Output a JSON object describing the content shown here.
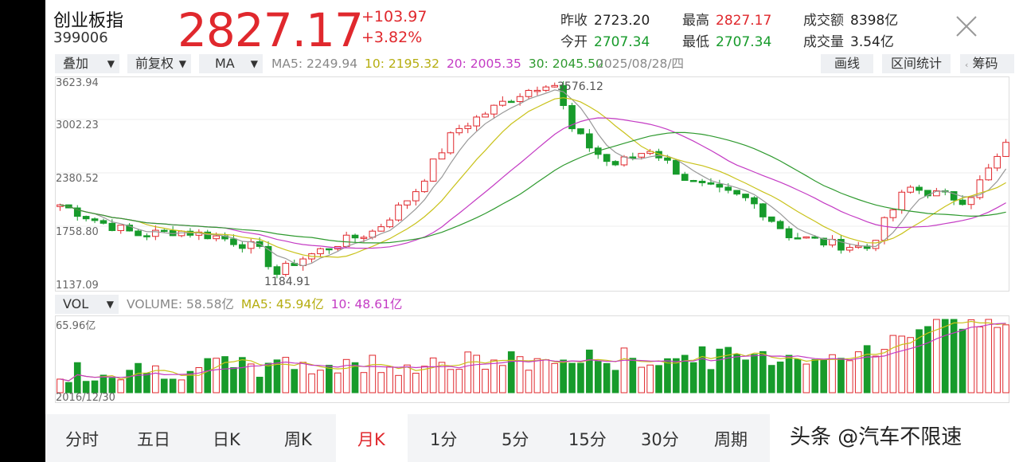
{
  "header": {
    "name": "创业板指",
    "code": "399006",
    "price": "2827.17",
    "change": "+103.97",
    "change_pct": "+3.82%",
    "stats": [
      {
        "label": "昨收",
        "value": "2723.20",
        "color": "#222222"
      },
      {
        "label": "今开",
        "value": "2707.34",
        "color": "#179b2b"
      },
      {
        "label": "最高",
        "value": "2827.17",
        "color": "#e0282d"
      },
      {
        "label": "最低",
        "value": "2707.34",
        "color": "#179b2b"
      },
      {
        "label": "成交额",
        "value": "8398亿",
        "color": "#222222"
      },
      {
        "label": "成交量",
        "value": "3.54亿",
        "color": "#222222"
      }
    ]
  },
  "toolbar": {
    "overlay": "叠加",
    "adjust": "前复权",
    "indicator": "MA",
    "ma5": "MA5: 2249.94",
    "ma10": "10: 2195.32",
    "ma20": "20: 2005.35",
    "ma30": "30: 2045.50",
    "date": "2025/08/28/四",
    "draw": "画线",
    "range_stat": "区间统计",
    "chips": "筹码"
  },
  "price_chart": {
    "ylabels": [
      "3623.94",
      "3002.23",
      "2380.52",
      "1758.80",
      "1137.09"
    ],
    "high_label": "3576.12",
    "low_label": "1184.91"
  },
  "volume": {
    "indicator": "VOL",
    "volume": "VOLUME: 58.58亿",
    "ma5": "MA5: 45.94亿",
    "ma10": "10: 48.61亿",
    "max_label": "65.96亿",
    "start_date": "2016/12/30"
  },
  "tabs": [
    "分时",
    "五日",
    "日K",
    "周K",
    "月K",
    "1分",
    "5分",
    "15分",
    "30分",
    "周期"
  ],
  "active_tab": "月K",
  "watermark": "头条 @汽车不限速",
  "colors": {
    "up": "#e0282d",
    "down": "#179b2b",
    "ma5": "#999999",
    "ma10": "#c9c21a",
    "ma20": "#c43bc4",
    "ma30": "#2f9a2f"
  }
}
